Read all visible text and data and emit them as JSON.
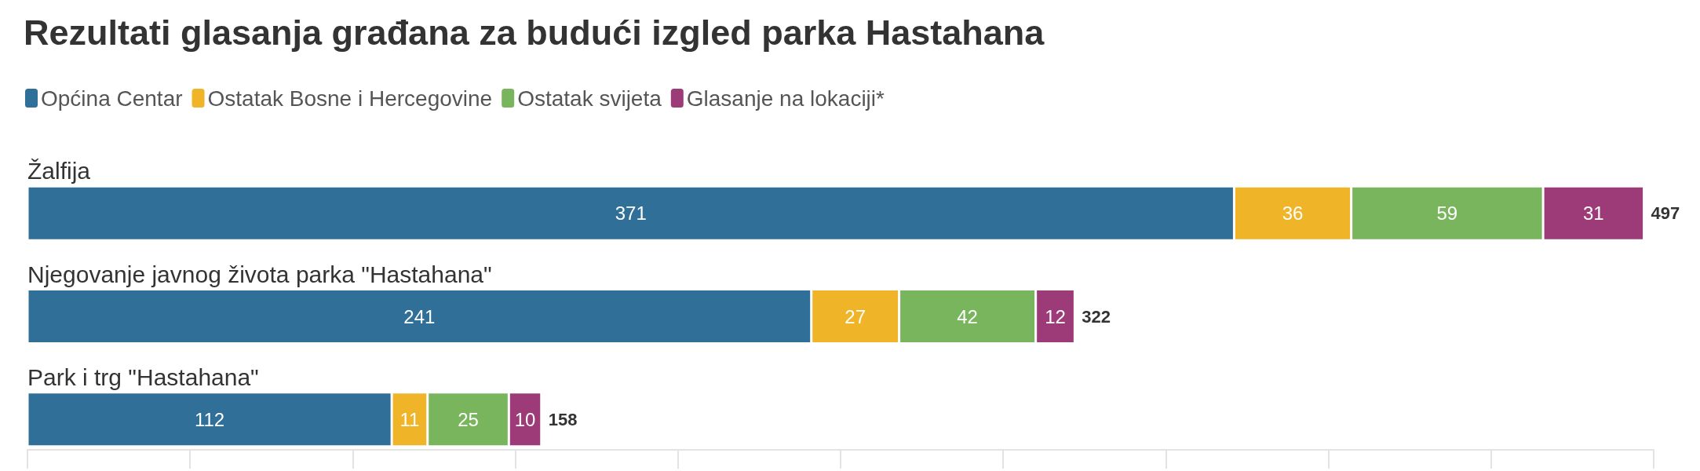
{
  "chart_data": {
    "type": "bar",
    "orientation": "horizontal",
    "stacked": true,
    "title": "Rezultati glasanja građana za budući izgled parka Hastahana",
    "categories": [
      "Žalfija",
      "Njegovanje javnog života parka \"Hastahana\"",
      "Park i trg \"Hastahana\""
    ],
    "series": [
      {
        "name": "Općina Centar",
        "color": "#306f98",
        "values": [
          371,
          241,
          112
        ]
      },
      {
        "name": "Ostatak Bosne i Hercegovine",
        "color": "#f0b429",
        "values": [
          36,
          27,
          11
        ]
      },
      {
        "name": "Ostatak svijeta",
        "color": "#79b55c",
        "values": [
          59,
          42,
          25
        ]
      },
      {
        "name": "Glasanje na lokaciji*",
        "color": "#9c3b78",
        "values": [
          31,
          12,
          10
        ]
      }
    ],
    "tick_labels": "y",
    "data_labels": true,
    "totals": [
      "497",
      "322",
      "158"
    ],
    "legend": "top left",
    "grid": false
  }
}
